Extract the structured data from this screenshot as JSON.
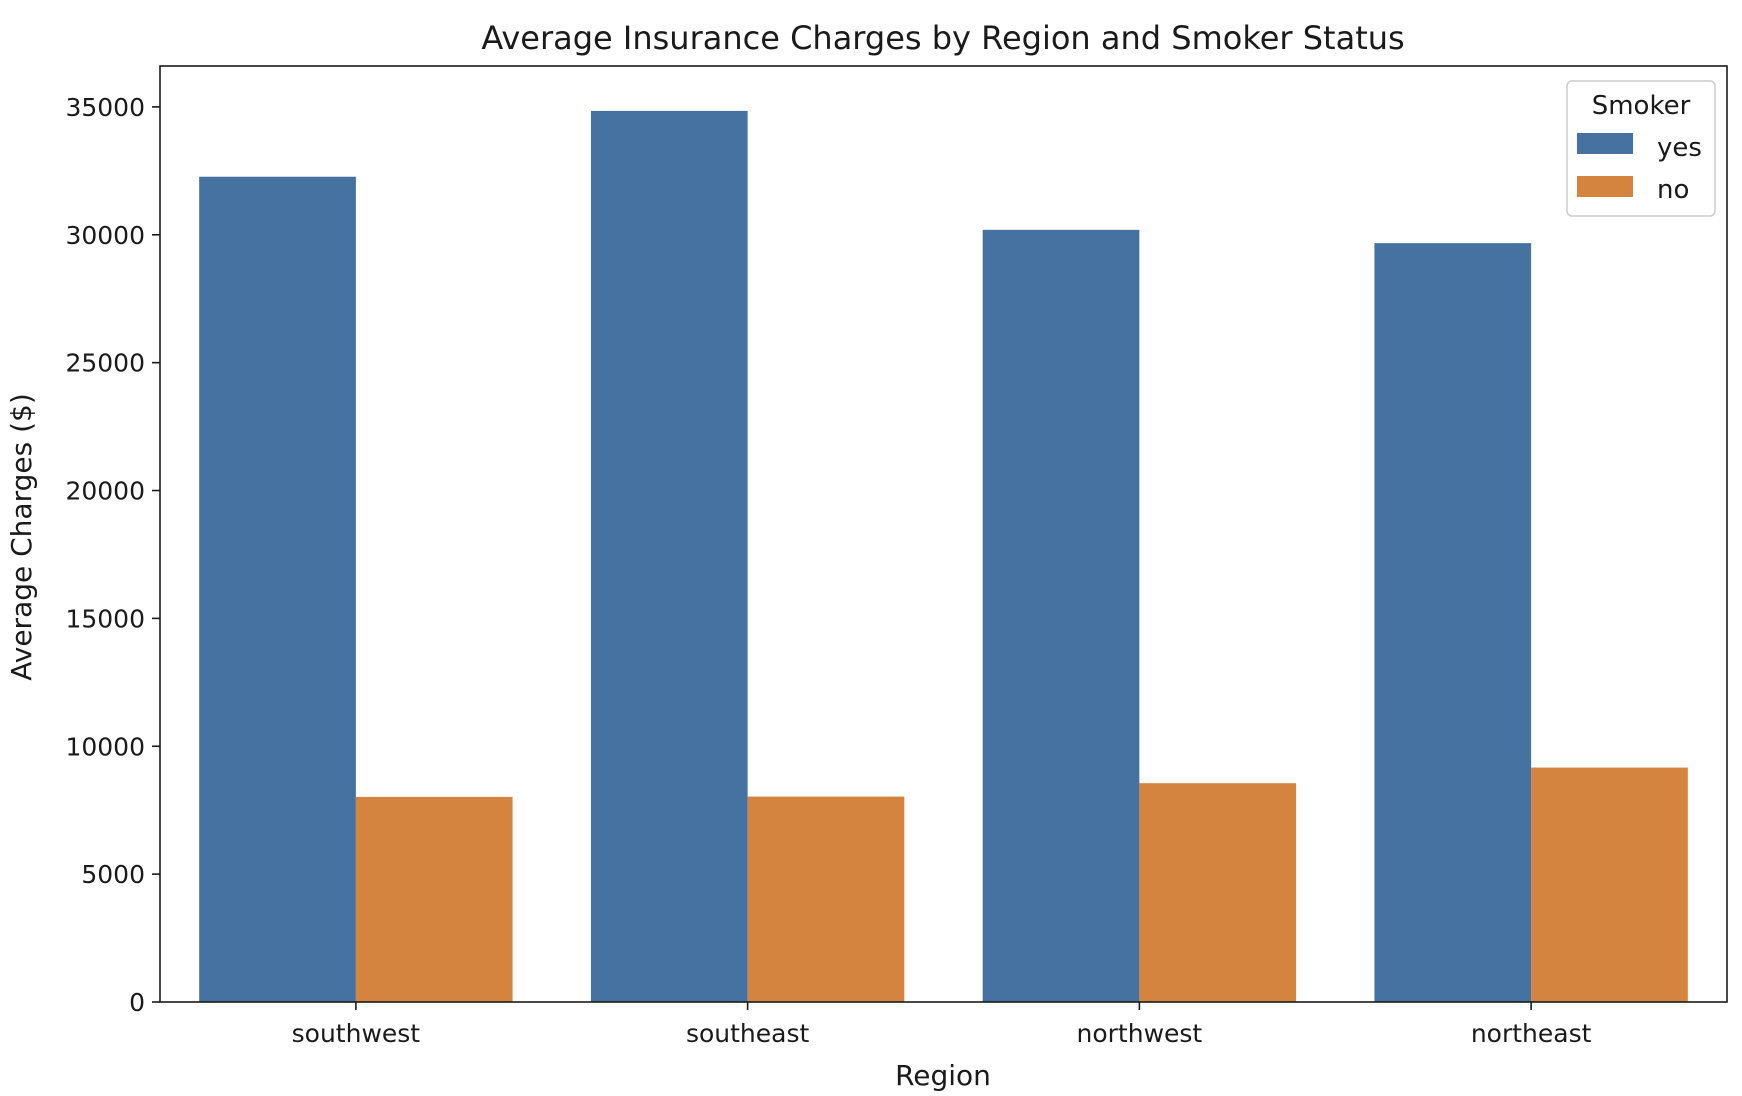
{
  "chart_data": {
    "type": "bar",
    "title": "Average Insurance Charges by Region and Smoker Status",
    "xlabel": "Region",
    "ylabel": "Average Charges ($)",
    "categories": [
      "southwest",
      "southeast",
      "northwest",
      "northeast"
    ],
    "series": [
      {
        "name": "yes",
        "values": [
          32270,
          34845,
          30193,
          29674
        ],
        "color": "#4572a0"
      },
      {
        "name": "no",
        "values": [
          8020,
          8032,
          8556,
          9166
        ],
        "color": "#d4843e"
      }
    ],
    "ylim": [
      0,
      36600
    ],
    "yticks": [
      0,
      5000,
      10000,
      15000,
      20000,
      25000,
      30000,
      35000
    ],
    "ytick_labels": [
      "0",
      "5000",
      "10000",
      "15000",
      "20000",
      "25000",
      "30000",
      "35000"
    ],
    "grid": false,
    "legend": {
      "title": "Smoker",
      "placement": "top-right"
    }
  }
}
